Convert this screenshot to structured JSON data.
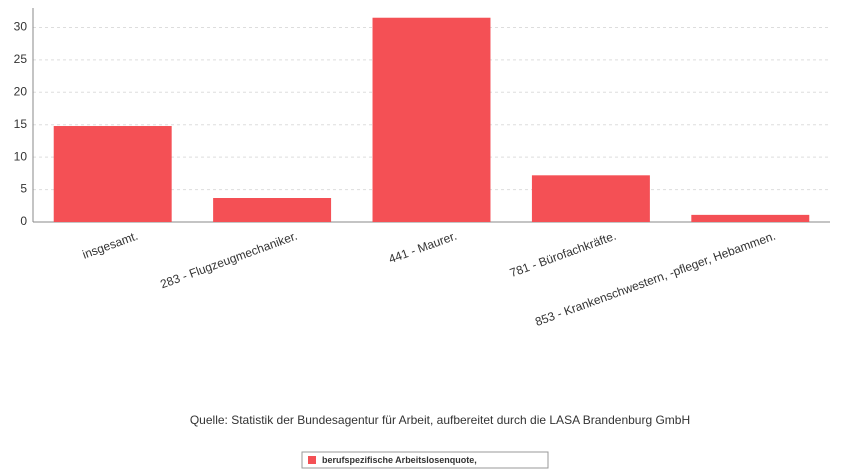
{
  "chart_data": {
    "type": "bar",
    "categories": [
      "insgesamt.",
      "283 - Flugzeugmechaniker.",
      "441 - Maurer.",
      "781 - Bürofachkräfte.",
      "853 - Krankenschwestern, -pfleger, Hebammen."
    ],
    "series": [
      {
        "name": "berufspezifische Arbeitslosenquote,",
        "color": "#f45055",
        "values": [
          14.8,
          3.7,
          31.5,
          7.2,
          1.1
        ]
      }
    ],
    "ylim": [
      0,
      33
    ],
    "yticks": [
      0,
      5,
      10,
      15,
      20,
      25,
      30
    ],
    "grid": true,
    "source": "Quelle: Statistik der Bundesagentur für Arbeit, aufbereitet durch die LASA Brandenburg GmbH"
  }
}
